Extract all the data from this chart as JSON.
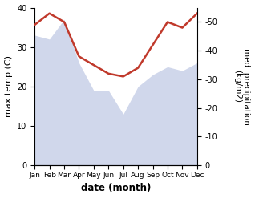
{
  "months": [
    "Jan",
    "Feb",
    "Mar",
    "Apr",
    "May",
    "Jun",
    "Jul",
    "Aug",
    "Sep",
    "Oct",
    "Nov",
    "Dec"
  ],
  "max_temp": [
    33,
    32,
    37,
    26,
    19,
    19,
    13,
    20,
    23,
    25,
    24,
    26
  ],
  "precipitation": [
    49,
    53,
    50,
    38,
    35,
    32,
    31,
    34,
    42,
    50,
    48,
    53
  ],
  "temp_ylim": [
    0,
    40
  ],
  "precip_ylim": [
    0,
    55
  ],
  "precip_yticks": [
    0,
    10,
    20,
    30,
    40,
    50
  ],
  "temp_yticks": [
    0,
    10,
    20,
    30,
    40
  ],
  "temp_fill_color": "#c8d0e8",
  "precip_line_color": "#c0392b",
  "xlabel": "date (month)",
  "ylabel_left": "max temp (C)",
  "ylabel_right": "med. precipitation\n(kg/m2)"
}
